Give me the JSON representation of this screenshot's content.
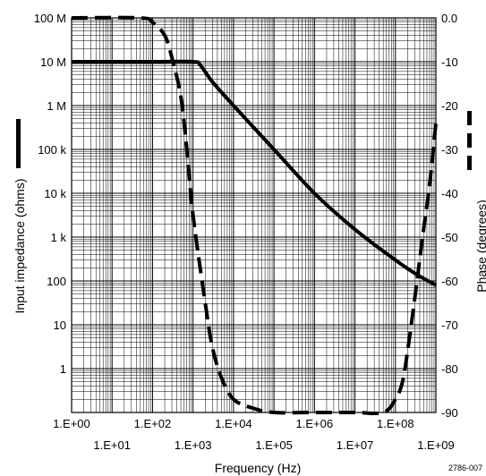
{
  "chart_data": {
    "type": "line",
    "title": "",
    "xlabel": "Frequency (Hz)",
    "ylabel": "Input impedance (ohms)",
    "y2label": "Phase (degrees)",
    "figure_note": "2786-007",
    "x_scale": "log",
    "y_scale": "log",
    "xlim": [
      1,
      1000000000
    ],
    "ylim": [
      0.1,
      100000000
    ],
    "y2lim": [
      -90,
      0
    ],
    "grid": true,
    "x_tick_labels": [
      "1.E+00",
      "1.E+01",
      "1.E+02",
      "1.E+03",
      "1.E+04",
      "1.E+05",
      "1.E+06",
      "1.E+07",
      "1.E+08",
      "1.E+09"
    ],
    "y_tick_labels": [
      "100 M",
      "10 M",
      "1 M",
      "100 k",
      "10 k",
      "1 k",
      "100",
      "10",
      "1"
    ],
    "y2_tick_labels": [
      "0.0",
      "-10",
      "-20",
      "-30",
      "-40",
      "-50",
      "-60",
      "-70",
      "-80",
      "-90"
    ],
    "legend": [
      {
        "series": "impedance",
        "style": "solid",
        "axis": "left"
      },
      {
        "series": "phase",
        "style": "dashed",
        "axis": "right"
      }
    ],
    "series": [
      {
        "id": "impedance",
        "axis": "left",
        "style": "solid",
        "color": "#000000",
        "x": [
          1,
          10,
          100,
          1000,
          1500,
          3000,
          10000,
          100000,
          1000000,
          10000000,
          100000000,
          300000000,
          1000000000
        ],
        "y": [
          10000000,
          10000000,
          10000000,
          10000000,
          8500000,
          3500000,
          1000000,
          100000,
          10000,
          1500,
          300,
          150,
          80
        ]
      },
      {
        "id": "phase",
        "axis": "right",
        "style": "dashed",
        "color": "#000000",
        "x": [
          1,
          50,
          100,
          200,
          300,
          500,
          700,
          1000,
          2000,
          3000,
          5000,
          10000,
          30000,
          100000,
          1000000,
          10000000,
          50000000,
          100000000,
          150000000,
          200000000,
          300000000,
          500000000,
          700000000,
          1000000000
        ],
        "y": [
          0,
          0,
          -1,
          -4,
          -9,
          -18,
          -30,
          -45,
          -65,
          -75,
          -82,
          -87,
          -89,
          -90,
          -90,
          -90,
          -90,
          -87,
          -83,
          -76,
          -64,
          -48,
          -38,
          -24
        ]
      }
    ]
  }
}
